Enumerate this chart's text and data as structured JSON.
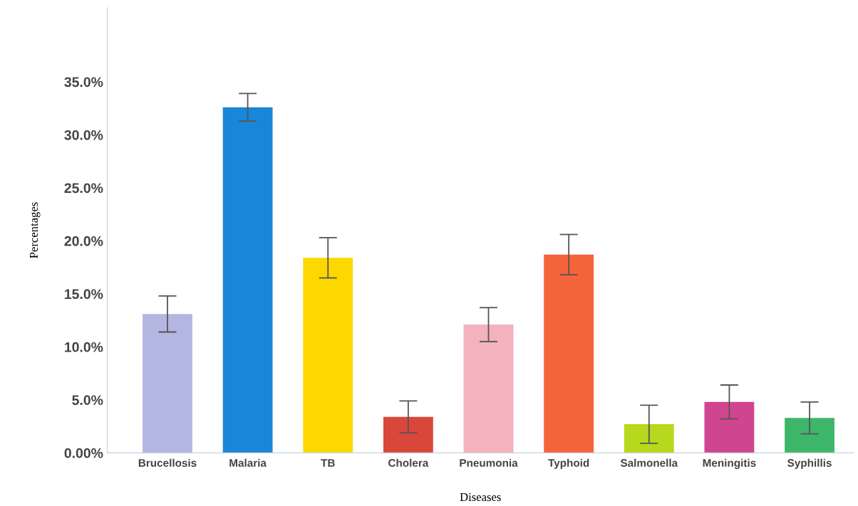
{
  "chart_data": {
    "type": "bar",
    "xlabel": "Diseases",
    "ylabel": "Percentages",
    "categories": [
      "Brucellosis",
      "Malaria",
      "TB",
      "Cholera",
      "Pneumonia",
      "Typhoid",
      "Salmonella",
      "Meningitis",
      "Syphillis"
    ],
    "values": [
      13.1,
      32.6,
      18.4,
      3.4,
      12.1,
      18.7,
      2.7,
      4.8,
      3.3
    ],
    "errors": [
      1.7,
      1.3,
      1.9,
      1.5,
      1.6,
      1.9,
      1.8,
      1.6,
      1.5
    ],
    "colors": [
      "#b3b6e0",
      "#1a86d8",
      "#fcd800",
      "#d9473b",
      "#f4b1be",
      "#f4643a",
      "#b7d81c",
      "#d0458f",
      "#3db669"
    ],
    "ylim": [
      0,
      42
    ],
    "yticks": [
      {
        "value": 0,
        "label": "0.00%"
      },
      {
        "value": 5,
        "label": "5.0%"
      },
      {
        "value": 10,
        "label": "10.0%"
      },
      {
        "value": 15,
        "label": "15.0%"
      },
      {
        "value": 20,
        "label": "20.0%"
      },
      {
        "value": 25,
        "label": "25.0%"
      },
      {
        "value": 30,
        "label": "30.0%"
      },
      {
        "value": 35,
        "label": "35.0%"
      }
    ],
    "grid": false,
    "legend": false
  }
}
